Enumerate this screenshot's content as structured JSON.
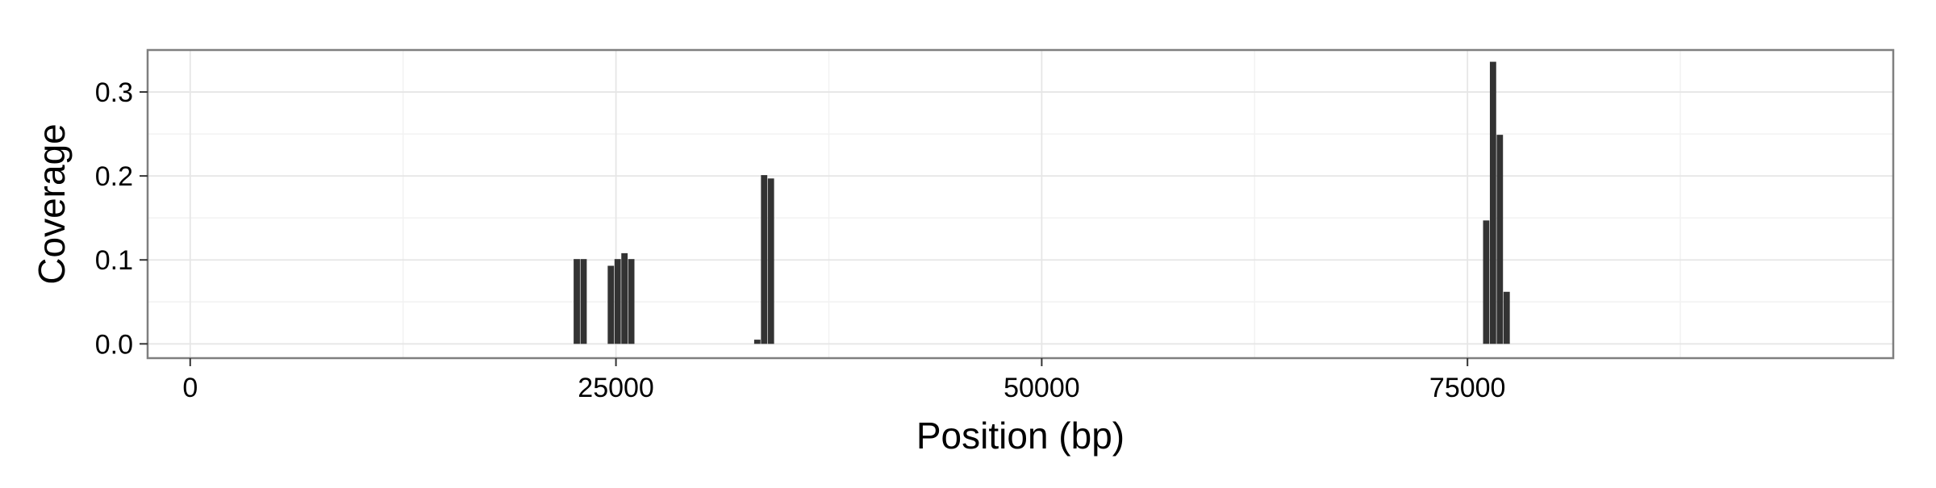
{
  "chart_data": {
    "type": "bar",
    "title": "",
    "xlabel": "Position (bp)",
    "ylabel": "Coverage",
    "xlim": [
      -2500,
      100000
    ],
    "ylim": [
      -0.017,
      0.35
    ],
    "x_ticks": [
      0,
      25000,
      50000,
      75000
    ],
    "x_tick_labels": [
      "0",
      "25000",
      "50000",
      "75000"
    ],
    "y_ticks": [
      0.0,
      0.1,
      0.2,
      0.3
    ],
    "y_tick_labels": [
      "0.0",
      "0.1",
      "0.2",
      "0.3"
    ],
    "grid": true,
    "legend": "none",
    "bar_width_bp": 370,
    "points": [
      {
        "x": 22700,
        "y": 0.101
      },
      {
        "x": 23100,
        "y": 0.101
      },
      {
        "x": 24700,
        "y": 0.093
      },
      {
        "x": 25100,
        "y": 0.101
      },
      {
        "x": 25500,
        "y": 0.108
      },
      {
        "x": 25900,
        "y": 0.101
      },
      {
        "x": 33300,
        "y": 0.005
      },
      {
        "x": 33700,
        "y": 0.201
      },
      {
        "x": 34100,
        "y": 0.197
      },
      {
        "x": 76100,
        "y": 0.147
      },
      {
        "x": 76500,
        "y": 0.336
      },
      {
        "x": 76900,
        "y": 0.249
      },
      {
        "x": 77300,
        "y": 0.062
      }
    ]
  },
  "colors": {
    "bar": "#333333",
    "panel_border": "#7f7f7f",
    "grid_major": "#e6e6e6",
    "grid_minor": "#f2f2f2",
    "tick": "#333333"
  }
}
